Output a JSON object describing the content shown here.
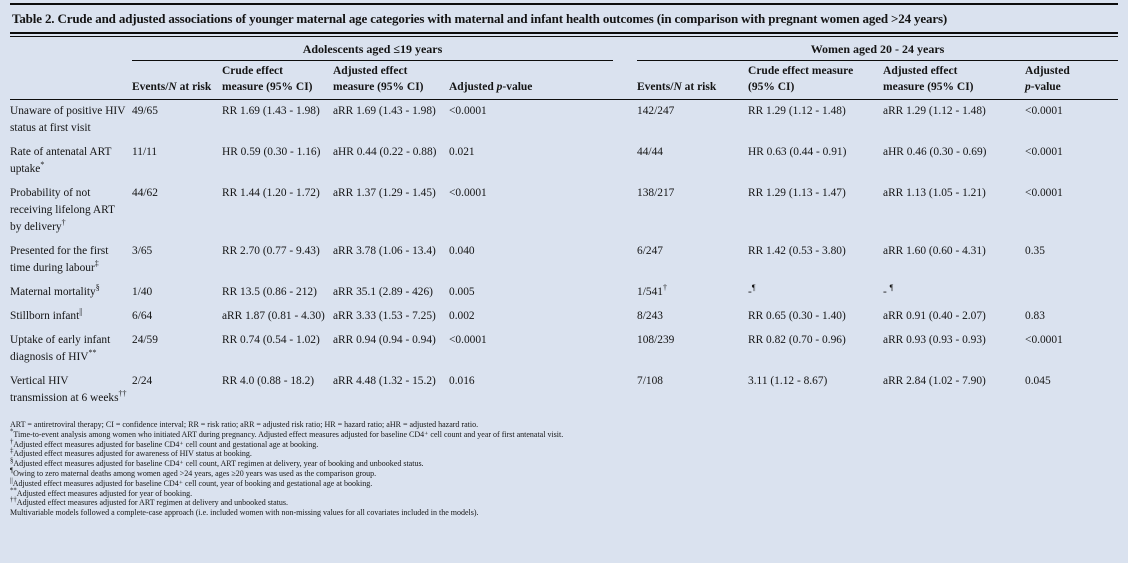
{
  "title": "Table 2. Crude and adjusted associations of younger maternal age categories with maternal and infant health outcomes (in comparison with pregnant women aged >24 years)",
  "header": {
    "groups": [
      "Adolescents aged ≤19 years",
      "Women aged 20 - 24 years"
    ],
    "columns": {
      "events_pre": "Events/",
      "events_n": "N",
      "events_post": " at risk",
      "crude_l1": "Crude effect",
      "crude_l2": "measure (95% CI)",
      "crude_r_l1": "Crude effect measure",
      "crude_r_l2": "(95% CI)",
      "adj_l1": "Adjusted effect",
      "adj_l2": "measure (95% CI)",
      "p_pre": "Adjusted ",
      "p_i": "p",
      "p_post": "-value",
      "p_r_l1": "Adjusted",
      "p_r_i": "p",
      "p_r_post": "-value"
    }
  },
  "rows": [
    {
      "outcome": "Unaware of positive HIV status at first visit",
      "marker": "",
      "cells": [
        "49/65",
        "RR 1.69 (1.43 - 1.98)",
        "aRR 1.69 (1.43 - 1.98)",
        "<0.0001",
        "142/247",
        "RR 1.29 (1.12 - 1.48)",
        "aRR 1.29 (1.12 - 1.48)",
        "<0.0001"
      ]
    },
    {
      "outcome": "Rate of antenatal ART uptake",
      "marker": "*",
      "cells": [
        "11/11",
        "HR 0.59 (0.30 - 1.16)",
        "aHR 0.44 (0.22 - 0.88)",
        "0.021",
        "44/44",
        "HR 0.63 (0.44 - 0.91)",
        "aHR  0.46 (0.30 - 0.69)",
        "<0.0001"
      ]
    },
    {
      "outcome": "Probability of not receiving lifelong ART by delivery",
      "marker": "†",
      "cells": [
        "44/62",
        "RR 1.44 (1.20 - 1.72)",
        "aRR 1.37 (1.29 - 1.45)",
        "<0.0001",
        "138/217",
        "RR 1.29 (1.13 - 1.47)",
        "aRR 1.13 (1.05 - 1.21)",
        "<0.0001"
      ]
    },
    {
      "outcome": "Presented for the first time during labour",
      "marker": "‡",
      "cells": [
        "3/65",
        "RR 2.70 (0.77 - 9.43)",
        "aRR 3.78 (1.06 - 13.4)",
        "0.040",
        "6/247",
        "RR 1.42 (0.53 - 3.80)",
        "aRR 1.60 (0.60 - 4.31)",
        "0.35"
      ]
    },
    {
      "outcome": "Maternal mortality",
      "marker": "§",
      "cells": [
        "1/40",
        "RR 13.5 (0.86 - 212)",
        "aRR 35.1 (2.89 - 426)",
        "0.005",
        "1/541†",
        "-¶",
        "- ¶",
        ""
      ]
    },
    {
      "outcome": "Stillborn infant",
      "marker": "||",
      "cells": [
        "6/64",
        "aRR 1.87 (0.81 - 4.30)",
        "aRR 3.33 (1.53 - 7.25)",
        "0.002",
        "8/243",
        "RR 0.65 (0.30 - 1.40)",
        "aRR 0.91 (0.40 - 2.07)",
        "0.83"
      ]
    },
    {
      "outcome": "Uptake of early infant diagnosis of HIV",
      "marker": "**",
      "cells": [
        "24/59",
        "RR 0.74 (0.54 - 1.02)",
        "aRR 0.94 (0.94 - 0.94)",
        "<0.0001",
        "108/239",
        "RR 0.82 (0.70 - 0.96)",
        "aRR 0.93 (0.93 - 0.93)",
        "<0.0001"
      ]
    },
    {
      "outcome": "Vertical HIV transmission at 6 weeks",
      "marker": "††",
      "cells": [
        "2/24",
        "RR 4.0 (0.88 - 18.2)",
        "aRR 4.48 (1.32 - 15.2)",
        "0.016",
        "7/108",
        "3.11 (1.12 - 8.67)",
        "aRR 2.84 (1.02 - 7.90)",
        "0.045"
      ]
    }
  ],
  "footnotes": [
    {
      "marker": "",
      "text": "ART = antiretroviral therapy; CI = confidence interval; RR = risk ratio; aRR = adjusted risk ratio; HR = hazard ratio; aHR = adjusted hazard ratio."
    },
    {
      "marker": "*",
      "text": "Time-to-event analysis among women who initiated ART during pregnancy. Adjusted effect measures adjusted for baseline CD4⁺ cell count and year of first antenatal visit."
    },
    {
      "marker": "†",
      "text": "Adjusted effect measures adjusted for baseline CD4⁺ cell count and gestational age at booking."
    },
    {
      "marker": "‡",
      "text": "Adjusted effect measures adjusted for awareness of HIV status at booking."
    },
    {
      "marker": "§",
      "text": "Adjusted effect measures adjusted for baseline CD4⁺ cell count, ART regimen at delivery, year of booking and unbooked status."
    },
    {
      "marker": "¶",
      "text": "Owing to zero maternal deaths among women aged >24 years, ages ≥20 years was used as the comparison group."
    },
    {
      "marker": "||",
      "text": "Adjusted effect measures adjusted for baseline CD4⁺ cell count, year of booking and gestational age at booking."
    },
    {
      "marker": "**",
      "text": "Adjusted effect measures adjusted for year of booking."
    },
    {
      "marker": "††",
      "text": "Adjusted effect measures adjusted for ART regimen at delivery and unbooked status."
    },
    {
      "marker": "",
      "text": "Multivariable models followed a complete-case approach (i.e. included women with non-missing values for all covariates included in the models)."
    }
  ],
  "colors": {
    "background": "#dae2ef",
    "rule": "#0d0d0d",
    "text": "#141414"
  }
}
